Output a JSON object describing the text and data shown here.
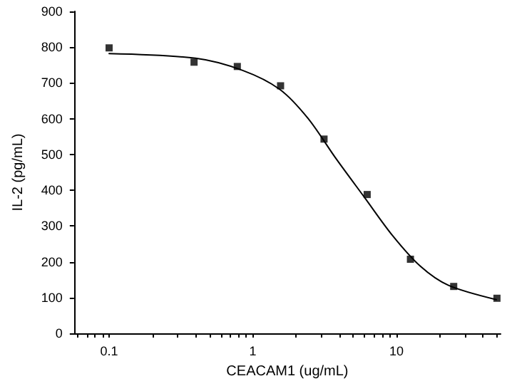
{
  "chart_data": {
    "type": "scatter",
    "xlabel": "CEACAM1 (ug/mL)",
    "ylabel": "IL-2 (pg/mL)",
    "log": "x",
    "xlim": [
      0.057,
      53
    ],
    "ylim": [
      0,
      900
    ],
    "xticks": [
      {
        "value": 0.06,
        "label": null
      },
      {
        "value": 0.07,
        "label": null
      },
      {
        "value": 0.08,
        "label": null
      },
      {
        "value": 0.09,
        "label": null
      },
      0.1,
      {
        "value": 0.2,
        "label": null
      },
      {
        "value": 0.3,
        "label": null
      },
      {
        "value": 0.4,
        "label": null
      },
      {
        "value": 0.5,
        "label": null
      },
      {
        "value": 0.6,
        "label": null
      },
      {
        "value": 0.7,
        "label": null
      },
      {
        "value": 0.8,
        "label": null
      },
      {
        "value": 0.9,
        "label": null
      },
      1,
      {
        "value": 2,
        "label": null
      },
      {
        "value": 3,
        "label": null
      },
      {
        "value": 4,
        "label": null
      },
      {
        "value": 5,
        "label": null
      },
      {
        "value": 6,
        "label": null
      },
      {
        "value": 7,
        "label": null
      },
      {
        "value": 8,
        "label": null
      },
      {
        "value": 9,
        "label": null
      },
      10,
      {
        "value": 20,
        "label": null
      },
      {
        "value": 30,
        "label": null
      },
      {
        "value": 40,
        "label": null
      },
      {
        "value": 50,
        "label": null
      }
    ],
    "yticks": [
      0,
      100,
      200,
      300,
      400,
      500,
      600,
      700,
      800,
      900
    ],
    "grid": false,
    "series": [
      {
        "color": "#000000",
        "marker": "square",
        "x": [
          0.1,
          0.39,
          0.78,
          1.56,
          3.13,
          6.25,
          12.5,
          25,
          50
        ],
        "values": [
          798,
          758,
          746,
          692,
          543,
          388,
          207,
          131,
          98
        ]
      },
      {
        "type": "line",
        "color": "#000000",
        "marker": "none",
        "line_style": "solid",
        "x": [
          0.1,
          0.4,
          0.85,
          1.54,
          2.42,
          3.8,
          5.96,
          9.35,
          14.7,
          23,
          49.5
        ],
        "values": [
          782,
          769,
          735,
          682,
          601,
          488,
          381,
          274,
          187,
          134,
          94
        ]
      }
    ]
  }
}
